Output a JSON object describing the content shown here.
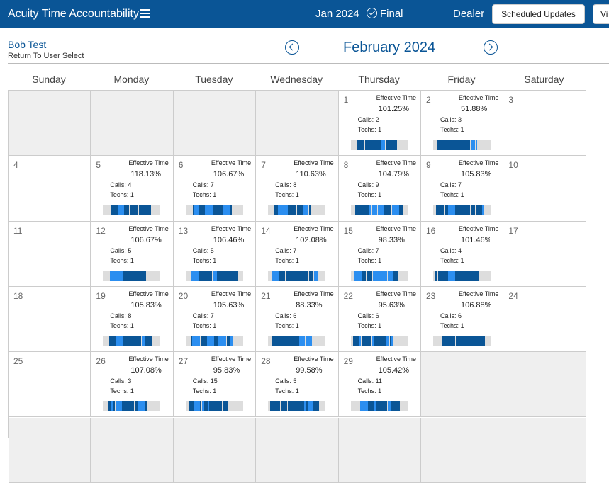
{
  "header": {
    "app_title": "Acuity Time Accountability",
    "period": "Jan 2024",
    "status": "Final",
    "role": "Dealer",
    "scheduled_updates_label": "Scheduled Updates",
    "view_label": "Vi"
  },
  "user": {
    "name": "Bob Test",
    "return_link": "Return To User Select"
  },
  "calendar": {
    "month_title": "February 2024",
    "weekdays": [
      "Sunday",
      "Monday",
      "Tuesday",
      "Wednesday",
      "Thursday",
      "Friday",
      "Saturday"
    ],
    "effective_label": "Effective Time",
    "calls_prefix": "Calls: ",
    "techs_prefix": "Techs: ",
    "colors": {
      "primary": "#0a5596",
      "dark_segment": "#0a5596",
      "light_segment": "#2b8ef0",
      "empty": "#efefef"
    },
    "weeks": [
      [
        null,
        null,
        null,
        null,
        {
          "day": "1",
          "effective": "101.25%",
          "calls": "2",
          "techs": "1"
        },
        {
          "day": "2",
          "effective": "51.88%",
          "calls": "3",
          "techs": "1"
        },
        {
          "day": "3"
        }
      ],
      [
        {
          "day": "4"
        },
        {
          "day": "5",
          "effective": "118.13%",
          "calls": "4",
          "techs": "1"
        },
        {
          "day": "6",
          "effective": "106.67%",
          "calls": "7",
          "techs": "1"
        },
        {
          "day": "7",
          "effective": "110.63%",
          "calls": "8",
          "techs": "1"
        },
        {
          "day": "8",
          "effective": "104.79%",
          "calls": "9",
          "techs": "1"
        },
        {
          "day": "9",
          "effective": "105.83%",
          "calls": "7",
          "techs": "1"
        },
        {
          "day": "10"
        }
      ],
      [
        {
          "day": "11"
        },
        {
          "day": "12",
          "effective": "106.67%",
          "calls": "5",
          "techs": "1"
        },
        {
          "day": "13",
          "effective": "106.46%",
          "calls": "5",
          "techs": "1"
        },
        {
          "day": "14",
          "effective": "102.08%",
          "calls": "7",
          "techs": "1"
        },
        {
          "day": "15",
          "effective": "98.33%",
          "calls": "7",
          "techs": "1"
        },
        {
          "day": "16",
          "effective": "101.46%",
          "calls": "4",
          "techs": "1"
        },
        {
          "day": "17"
        }
      ],
      [
        {
          "day": "18"
        },
        {
          "day": "19",
          "effective": "105.83%",
          "calls": "8",
          "techs": "1"
        },
        {
          "day": "20",
          "effective": "105.63%",
          "calls": "7",
          "techs": "1"
        },
        {
          "day": "21",
          "effective": "88.33%",
          "calls": "6",
          "techs": "1"
        },
        {
          "day": "22",
          "effective": "95.63%",
          "calls": "6",
          "techs": "1"
        },
        {
          "day": "23",
          "effective": "106.88%",
          "calls": "6",
          "techs": "1"
        },
        {
          "day": "24"
        }
      ],
      [
        {
          "day": "25"
        },
        {
          "day": "26",
          "effective": "107.08%",
          "calls": "3",
          "techs": "1"
        },
        {
          "day": "27",
          "effective": "95.83%",
          "calls": "15",
          "techs": "1"
        },
        {
          "day": "28",
          "effective": "99.58%",
          "calls": "5",
          "techs": "1"
        },
        {
          "day": "29",
          "effective": "105.42%",
          "calls": "11",
          "techs": "1"
        },
        null,
        null
      ],
      [
        null,
        null,
        null,
        null,
        null,
        null,
        null
      ]
    ]
  }
}
